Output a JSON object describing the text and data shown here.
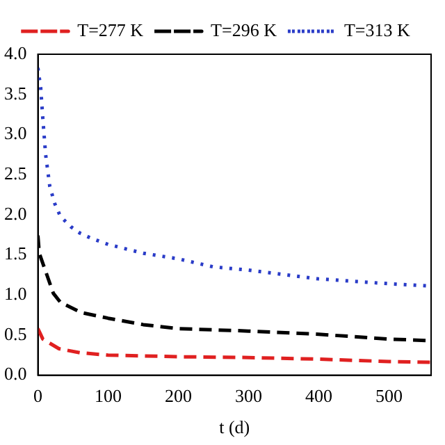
{
  "chart_data": {
    "type": "line",
    "xlabel": "t (d)",
    "xlim": [
      0,
      560
    ],
    "xticks": [
      0,
      100,
      200,
      300,
      400,
      500
    ],
    "ylim": [
      0,
      4
    ],
    "yticks": [
      {
        "value": 0,
        "label": "0.0"
      },
      {
        "value": 0.5,
        "label": "0.5"
      },
      {
        "value": 1,
        "label": "1.0"
      },
      {
        "value": 1.5,
        "label": "1.5"
      },
      {
        "value": 2,
        "label": "2.0"
      },
      {
        "value": 2.5,
        "label": "2.5"
      },
      {
        "value": 3,
        "label": "3.0"
      },
      {
        "value": 3.5,
        "label": "3.5"
      },
      {
        "value": 4,
        "label": "4.0"
      }
    ],
    "grid": false,
    "legend": "top",
    "marker": "none",
    "series": [
      {
        "name": "T=277 K",
        "color": "#e02020",
        "line_style": "dashed",
        "x": [
          0,
          7,
          30,
          60,
          100,
          200,
          300,
          400,
          500,
          560
        ],
        "values": [
          0.58,
          0.45,
          0.33,
          0.28,
          0.25,
          0.23,
          0.22,
          0.2,
          0.17,
          0.16
        ]
      },
      {
        "name": "T=296 K",
        "color": "#000000",
        "line_style": "dashed",
        "x": [
          0,
          2,
          22,
          32,
          62,
          100,
          150,
          200,
          300,
          400,
          500,
          560
        ],
        "values": [
          1.74,
          1.52,
          1.02,
          0.91,
          0.78,
          0.71,
          0.63,
          0.58,
          0.55,
          0.51,
          0.45,
          0.43
        ]
      },
      {
        "name": "T=313 K",
        "color": "#2a3cc8",
        "line_style": "dotted",
        "x": [
          0,
          4,
          7,
          11,
          17,
          24,
          32,
          47,
          60,
          75,
          100,
          150,
          200,
          250,
          300,
          400,
          500,
          560
        ],
        "values": [
          3.83,
          3.58,
          3.2,
          2.75,
          2.35,
          2.14,
          1.98,
          1.85,
          1.77,
          1.71,
          1.63,
          1.52,
          1.45,
          1.35,
          1.31,
          1.2,
          1.14,
          1.11
        ]
      }
    ]
  }
}
